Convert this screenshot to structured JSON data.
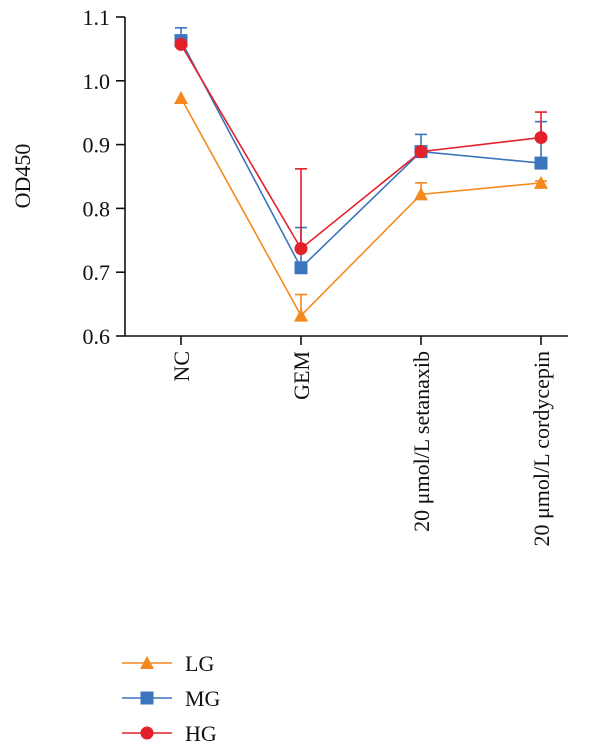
{
  "chart_data": {
    "type": "line",
    "title": "",
    "xlabel": "",
    "ylabel": "OD450",
    "ylim": [
      0.6,
      1.1
    ],
    "yticks": [
      "0.6",
      "0.7",
      "0.8",
      "0.9",
      "1.0",
      "1.1"
    ],
    "categories": [
      "NC",
      "GEM",
      "20 μmol/L setanaxib",
      "20 μmol/L cordycepin"
    ],
    "grid": false,
    "legend_position": "bottom-left",
    "series": [
      {
        "name": "LG",
        "color": "#f5891f",
        "marker": "triangle",
        "values": [
          0.973,
          0.632,
          0.822,
          0.84
        ],
        "error": [
          0.0,
          0.033,
          0.018,
          0.003
        ]
      },
      {
        "name": "MG",
        "color": "#3c74bd",
        "marker": "square",
        "values": [
          1.063,
          0.707,
          0.889,
          0.871
        ],
        "error": [
          0.02,
          0.063,
          0.027,
          0.065
        ]
      },
      {
        "name": "HG",
        "color": "#e4202a",
        "marker": "circle",
        "values": [
          1.057,
          0.737,
          0.889,
          0.911
        ],
        "error": [
          0.0,
          0.125,
          0.0,
          0.04
        ]
      }
    ]
  }
}
